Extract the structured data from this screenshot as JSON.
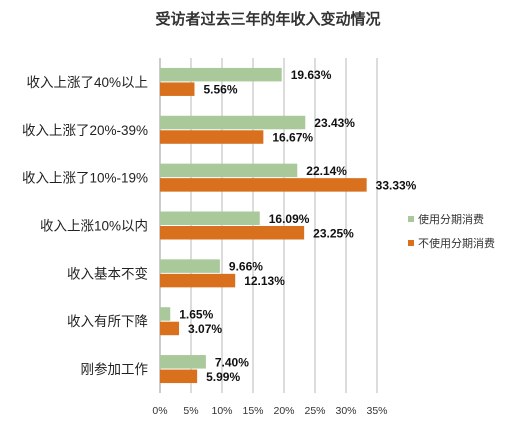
{
  "chart_data": {
    "type": "bar",
    "orientation": "horizontal",
    "title": "受访者过去三年的年收入变动情况",
    "categories": [
      "收入上涨了40%以上",
      "收入上涨了20%-39%",
      "收入上涨了10%-19%",
      "收入上涨10%以内",
      "收入基本不变",
      "收入有所下降",
      "刚参加工作"
    ],
    "series": [
      {
        "name": "使用分期消费",
        "color": "#a9c99a",
        "values": [
          19.63,
          23.43,
          22.14,
          16.09,
          9.66,
          1.65,
          7.4
        ],
        "labels": [
          "19.63%",
          "23.43%",
          "22.14%",
          "16.09%",
          "9.66%",
          "1.65%",
          "7.40%"
        ]
      },
      {
        "name": "不使用分期消费",
        "color": "#d8701e",
        "values": [
          5.56,
          16.67,
          33.33,
          23.25,
          12.13,
          3.07,
          5.99
        ],
        "labels": [
          "5.56%",
          "16.67%",
          "33.33%",
          "23.25%",
          "12.13%",
          "3.07%",
          "5.99%"
        ]
      }
    ],
    "xlim": [
      0,
      35
    ],
    "xticks": [
      "0%",
      "5%",
      "10%",
      "15%",
      "20%",
      "25%",
      "30%",
      "35%"
    ],
    "grid": true,
    "legend": "right"
  }
}
